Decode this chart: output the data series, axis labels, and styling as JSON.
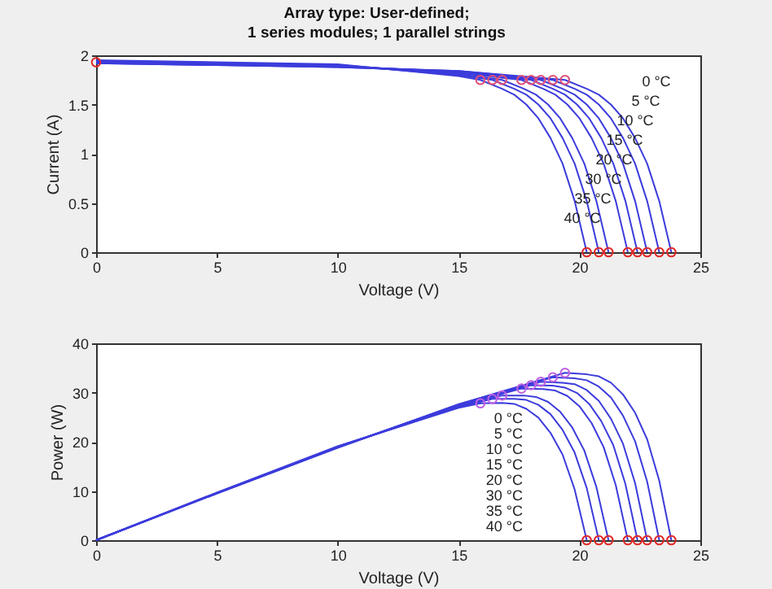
{
  "chart_data": [
    {
      "type": "line",
      "title": "Array type: User-defined;\n1 series modules; 1 parallel strings",
      "xlabel": "Voltage (V)",
      "ylabel": "Current (A)",
      "xlim": [
        0,
        25
      ],
      "xticks": [
        0,
        5,
        10,
        15,
        20,
        25
      ],
      "ylim": [
        0,
        2
      ],
      "yticks": [
        0,
        0.5,
        1,
        1.5,
        2
      ],
      "grid": false,
      "series": [
        {
          "color": "#3c3cdc",
          "x": [
            0,
            5,
            10,
            15,
            19.4,
            20.3,
            20.8,
            21.3,
            21.8,
            22.3,
            22.8,
            23.3,
            23.8
          ],
          "values": [
            1.92,
            1.9,
            1.88,
            1.84,
            1.75,
            1.66,
            1.6,
            1.5,
            1.36,
            1.16,
            0.9,
            0.52,
            0
          ]
        },
        {
          "color": "#3c3cdc",
          "x": [
            0,
            5,
            10,
            15,
            18.9,
            19.8,
            20.3,
            20.8,
            21.3,
            21.8,
            22.3,
            22.8,
            23.3
          ],
          "values": [
            1.92,
            1.9,
            1.88,
            1.84,
            1.75,
            1.66,
            1.6,
            1.5,
            1.36,
            1.16,
            0.9,
            0.52,
            0
          ]
        },
        {
          "color": "#3c3cdc",
          "x": [
            0,
            5,
            10,
            15,
            18.4,
            19.3,
            19.8,
            20.3,
            20.8,
            21.3,
            21.8,
            22.3,
            22.8
          ],
          "values": [
            1.93,
            1.91,
            1.89,
            1.83,
            1.75,
            1.66,
            1.6,
            1.5,
            1.36,
            1.16,
            0.9,
            0.52,
            0
          ]
        },
        {
          "color": "#3c3cdc",
          "x": [
            0,
            5,
            10,
            15,
            18,
            18.9,
            19.4,
            19.9,
            20.4,
            20.9,
            21.4,
            21.9,
            22.4
          ],
          "values": [
            1.93,
            1.91,
            1.89,
            1.83,
            1.75,
            1.66,
            1.6,
            1.5,
            1.36,
            1.16,
            0.9,
            0.52,
            0
          ]
        },
        {
          "color": "#3c3cdc",
          "x": [
            0,
            5,
            10,
            15,
            17.6,
            18.5,
            19,
            19.5,
            20,
            20.5,
            21,
            21.5,
            22
          ],
          "values": [
            1.93,
            1.91,
            1.89,
            1.82,
            1.75,
            1.66,
            1.6,
            1.5,
            1.36,
            1.16,
            0.9,
            0.52,
            0
          ]
        },
        {
          "color": "#3c3cdc",
          "x": [
            0,
            5,
            10,
            15,
            16.8,
            17.7,
            18.2,
            18.7,
            19.2,
            19.7,
            20.2,
            20.7,
            21.2
          ],
          "values": [
            1.94,
            1.92,
            1.9,
            1.81,
            1.75,
            1.66,
            1.6,
            1.5,
            1.36,
            1.16,
            0.9,
            0.52,
            0
          ]
        },
        {
          "color": "#3c3cdc",
          "x": [
            0,
            5,
            10,
            15,
            16.4,
            17.3,
            17.8,
            18.3,
            18.8,
            19.3,
            19.8,
            20.3,
            20.8
          ],
          "values": [
            1.94,
            1.92,
            1.9,
            1.8,
            1.75,
            1.66,
            1.6,
            1.5,
            1.36,
            1.16,
            0.9,
            0.52,
            0
          ]
        },
        {
          "color": "#3c3cdc",
          "x": [
            0,
            5,
            10,
            15,
            15.9,
            16.8,
            17.3,
            17.8,
            18.3,
            18.8,
            19.3,
            19.8,
            20.3
          ],
          "values": [
            1.95,
            1.93,
            1.91,
            1.79,
            1.75,
            1.66,
            1.6,
            1.5,
            1.36,
            1.16,
            0.9,
            0.52,
            0
          ]
        },
        {
          "type": "scatter",
          "color": "#e05078",
          "x": [
            19.4,
            18.9,
            18.4,
            18,
            17.6,
            16.8,
            16.4,
            15.9
          ],
          "values": [
            1.75,
            1.75,
            1.75,
            1.75,
            1.75,
            1.75,
            1.75,
            1.75
          ]
        },
        {
          "type": "scatter",
          "color": "#e02828",
          "x": [
            0,
            23.8,
            23.3,
            22.8,
            22.4,
            22,
            21.2,
            20.8,
            20.3
          ],
          "values": [
            1.93,
            0,
            0,
            0,
            0,
            0,
            0,
            0,
            0
          ]
        }
      ],
      "annotations": [
        "0 °C",
        "5 °C",
        "10 °C",
        "15 °C",
        "20 °C",
        "30 °C",
        "35 °C",
        "40 °C"
      ]
    },
    {
      "type": "line",
      "xlabel": "Voltage (V)",
      "ylabel": "Power (W)",
      "xlim": [
        0,
        25
      ],
      "xticks": [
        0,
        5,
        10,
        15,
        20,
        25
      ],
      "ylim": [
        0,
        40
      ],
      "yticks": [
        0,
        10,
        20,
        30,
        40
      ],
      "grid": false,
      "series": [
        {
          "color": "#3c3cdc",
          "x": [
            0,
            5,
            10,
            15,
            19.4,
            20.3,
            20.8,
            21.3,
            21.8,
            22.3,
            22.8,
            23.3,
            23.8
          ],
          "values": [
            0,
            9.5,
            18.8,
            27.6,
            34,
            33.7,
            33.3,
            32,
            29.6,
            25.9,
            20.5,
            12.1,
            0
          ]
        },
        {
          "color": "#3c3cdc",
          "x": [
            0,
            5,
            10,
            15,
            18.9,
            19.8,
            20.3,
            20.8,
            21.3,
            21.8,
            22.3,
            22.8,
            23.3
          ],
          "values": [
            0,
            9.5,
            18.8,
            27.6,
            33.1,
            32.9,
            32.5,
            31.2,
            29,
            25.3,
            20.1,
            11.9,
            0
          ]
        },
        {
          "color": "#3c3cdc",
          "x": [
            0,
            5,
            10,
            15,
            18.4,
            19.3,
            19.8,
            20.3,
            20.8,
            21.3,
            21.8,
            22.3,
            22.8
          ],
          "values": [
            0,
            9.6,
            18.9,
            27.5,
            32.2,
            32,
            31.7,
            30.5,
            28.3,
            24.7,
            19.6,
            11.6,
            0
          ]
        },
        {
          "color": "#3c3cdc",
          "x": [
            0,
            5,
            10,
            15,
            18,
            18.9,
            19.4,
            19.9,
            20.4,
            20.9,
            21.4,
            21.9,
            22.4
          ],
          "values": [
            0,
            9.6,
            18.9,
            27.5,
            31.5,
            31.4,
            31,
            29.9,
            27.7,
            24.2,
            19.3,
            11.4,
            0
          ]
        },
        {
          "color": "#3c3cdc",
          "x": [
            0,
            5,
            10,
            15,
            17.6,
            18.5,
            19,
            19.5,
            20,
            20.5,
            21,
            21.5,
            22
          ],
          "values": [
            0,
            9.6,
            18.9,
            27.3,
            30.8,
            30.7,
            30.4,
            29.3,
            27.2,
            23.8,
            18.9,
            11.2,
            0
          ]
        },
        {
          "color": "#3c3cdc",
          "x": [
            0,
            5,
            10,
            15,
            16.8,
            17.7,
            18.2,
            18.7,
            19.2,
            19.7,
            20.2,
            20.7,
            21.2
          ],
          "values": [
            0,
            9.6,
            19,
            27.2,
            29.4,
            29.4,
            29.1,
            28.1,
            26.1,
            22.9,
            18.2,
            10.8,
            0
          ]
        },
        {
          "color": "#3c3cdc",
          "x": [
            0,
            5,
            10,
            15,
            16.4,
            17.3,
            17.8,
            18.3,
            18.8,
            19.3,
            19.8,
            20.3,
            20.8
          ],
          "values": [
            0,
            9.6,
            19,
            27,
            28.7,
            28.7,
            28.5,
            27.5,
            25.6,
            22.4,
            17.8,
            10.6,
            0
          ]
        },
        {
          "color": "#3c3cdc",
          "x": [
            0,
            5,
            10,
            15,
            15.9,
            16.8,
            17.3,
            17.8,
            18.3,
            18.8,
            19.3,
            19.8,
            20.3
          ],
          "values": [
            0,
            9.7,
            19.1,
            26.9,
            27.8,
            27.9,
            27.7,
            26.7,
            24.9,
            21.8,
            17.4,
            10.3,
            0
          ]
        },
        {
          "type": "scatter",
          "color": "#c060e0",
          "x": [
            19.4,
            18.9,
            18.4,
            18,
            17.6,
            16.8,
            16.4,
            15.9
          ],
          "values": [
            34,
            33.1,
            32.2,
            31.5,
            30.8,
            29.4,
            28.7,
            27.8
          ]
        },
        {
          "type": "scatter",
          "color": "#e02828",
          "x": [
            23.8,
            23.3,
            22.8,
            22.4,
            22,
            21.2,
            20.8,
            20.3
          ],
          "values": [
            0,
            0,
            0,
            0,
            0,
            0,
            0,
            0
          ]
        }
      ],
      "annotations": [
        "0 °C",
        "5 °C",
        "10 °C",
        "15 °C",
        "20 °C",
        "30 °C",
        "35 °C",
        "40 °C"
      ]
    }
  ]
}
